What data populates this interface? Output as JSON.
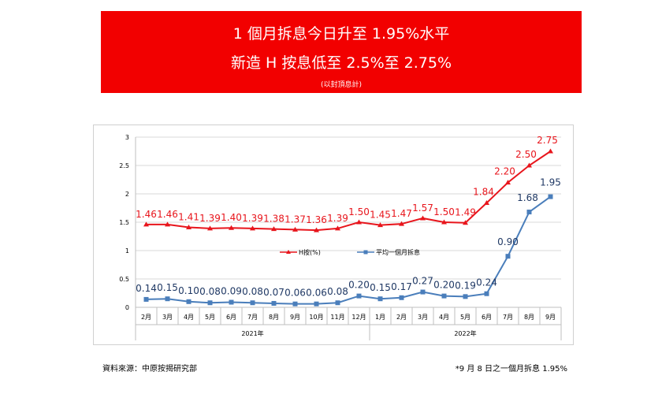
{
  "banner": {
    "line1": "1 個月拆息今日升至 1.95%水平",
    "line2": "新造 H 按息低至 2.5%至 2.75%",
    "line3": "(以封頂息計)",
    "bg_color": "#f20000"
  },
  "footer": {
    "source": "資料來源：中原按揭研究部",
    "note": "*9 月 8 日之一個月拆息 1.95%"
  },
  "chart_data": {
    "type": "line",
    "categories": [
      "2月",
      "3月",
      "4月",
      "5月",
      "6月",
      "7月",
      "8月",
      "9月",
      "10月",
      "11月",
      "12月",
      "1月",
      "2月",
      "3月",
      "4月",
      "5月",
      "6月",
      "7月",
      "8月",
      "9月"
    ],
    "year_groups": [
      {
        "label": "2021年",
        "start": 0,
        "end": 10
      },
      {
        "label": "2022年",
        "start": 11,
        "end": 19
      }
    ],
    "ylim": [
      0,
      3
    ],
    "yticks": [
      "0",
      "0.5",
      "1",
      "1.5",
      "2",
      "2.5",
      "3"
    ],
    "grid": true,
    "legend": "center",
    "series": [
      {
        "name": "H按(%)",
        "color": "#e8151c",
        "marker": "triangle",
        "values": [
          1.46,
          1.46,
          1.41,
          1.39,
          1.4,
          1.39,
          1.38,
          1.37,
          1.36,
          1.39,
          1.5,
          1.45,
          1.47,
          1.57,
          1.5,
          1.49,
          1.84,
          2.2,
          2.5,
          2.75
        ],
        "labels": [
          "1.46",
          "1.46",
          "1.41",
          "1.39",
          "1.40",
          "1.39",
          "1.38",
          "1.37",
          "1.36",
          "1.39",
          "1.50",
          "1.45",
          "1.47",
          "1.57",
          "1.50",
          "1.49",
          "1.84",
          "2.20",
          "2.50",
          "2.75"
        ]
      },
      {
        "name": "平均一個月拆息",
        "color": "#4a7ebb",
        "label_color": "#1f3864",
        "marker": "square",
        "values": [
          0.14,
          0.15,
          0.1,
          0.08,
          0.09,
          0.08,
          0.07,
          0.06,
          0.06,
          0.08,
          0.2,
          0.15,
          0.17,
          0.27,
          0.2,
          0.19,
          0.24,
          0.9,
          1.68,
          1.95
        ],
        "labels": [
          "0.14",
          "0.15",
          "0.10",
          "0.08",
          "0.09",
          "0.08",
          "0.07",
          "0.06",
          "0.06",
          "0.08",
          "0.20",
          "0.15",
          "0.17",
          "0.27",
          "0.20",
          "0.19",
          "0.24",
          "0.90",
          "1.68",
          "1.95"
        ]
      }
    ]
  }
}
